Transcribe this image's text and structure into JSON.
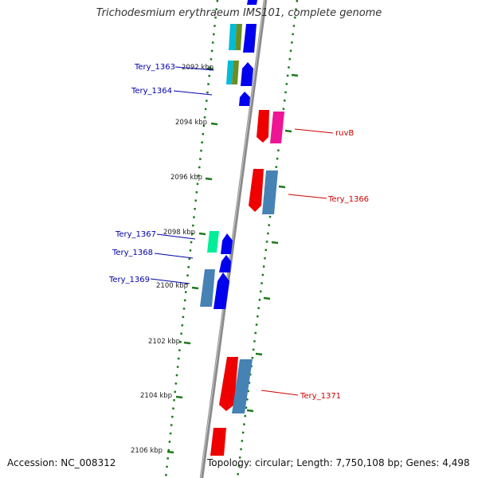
{
  "title": "Trichodesmium erythraeum IMS101, complete genome",
  "footer": {
    "accession": "Accession: NC_008312",
    "topology": "Topology: circular; Length: 7,750,108 bp; Genes: 4,498"
  },
  "ticks": [
    "2092 kbp",
    "2094 kbp",
    "2096 kbp",
    "2098 kbp",
    "2100 kbp",
    "2102 kbp",
    "2104 kbp",
    "2106 kbp"
  ],
  "gene_labels": [
    {
      "id": "l1363",
      "text": "Tery_1363",
      "side": "left",
      "color": "#0000aa"
    },
    {
      "id": "l1364",
      "text": "Tery_1364",
      "side": "left",
      "color": "#0000aa"
    },
    {
      "id": "lruvb",
      "text": "ruvB",
      "side": "right",
      "color": "#cc0000"
    },
    {
      "id": "l1366",
      "text": "Tery_1366",
      "side": "right",
      "color": "#cc0000"
    },
    {
      "id": "l1367",
      "text": "Tery_1367",
      "side": "left",
      "color": "#0000aa"
    },
    {
      "id": "l1368",
      "text": "Tery_1368",
      "side": "left",
      "color": "#0000aa"
    },
    {
      "id": "l1369",
      "text": "Tery_1369",
      "side": "left",
      "color": "#0000aa"
    },
    {
      "id": "l1371",
      "text": "Tery_1371",
      "side": "right",
      "color": "#cc0000"
    }
  ],
  "colors": {
    "backbone": "#8a8a8a",
    "tick": "#1a7a1a",
    "forward_gene": "#0000ee",
    "reverse_gene": "#ee0000",
    "steelblue_gene": "#4682b4",
    "magenta_gene": "#ee1493",
    "cyan_gene": "#00bcd4",
    "olive_gene": "#6b8e23",
    "spring_gene": "#00ee99",
    "left_label": "#0000aa",
    "right_label": "#cc0000"
  }
}
